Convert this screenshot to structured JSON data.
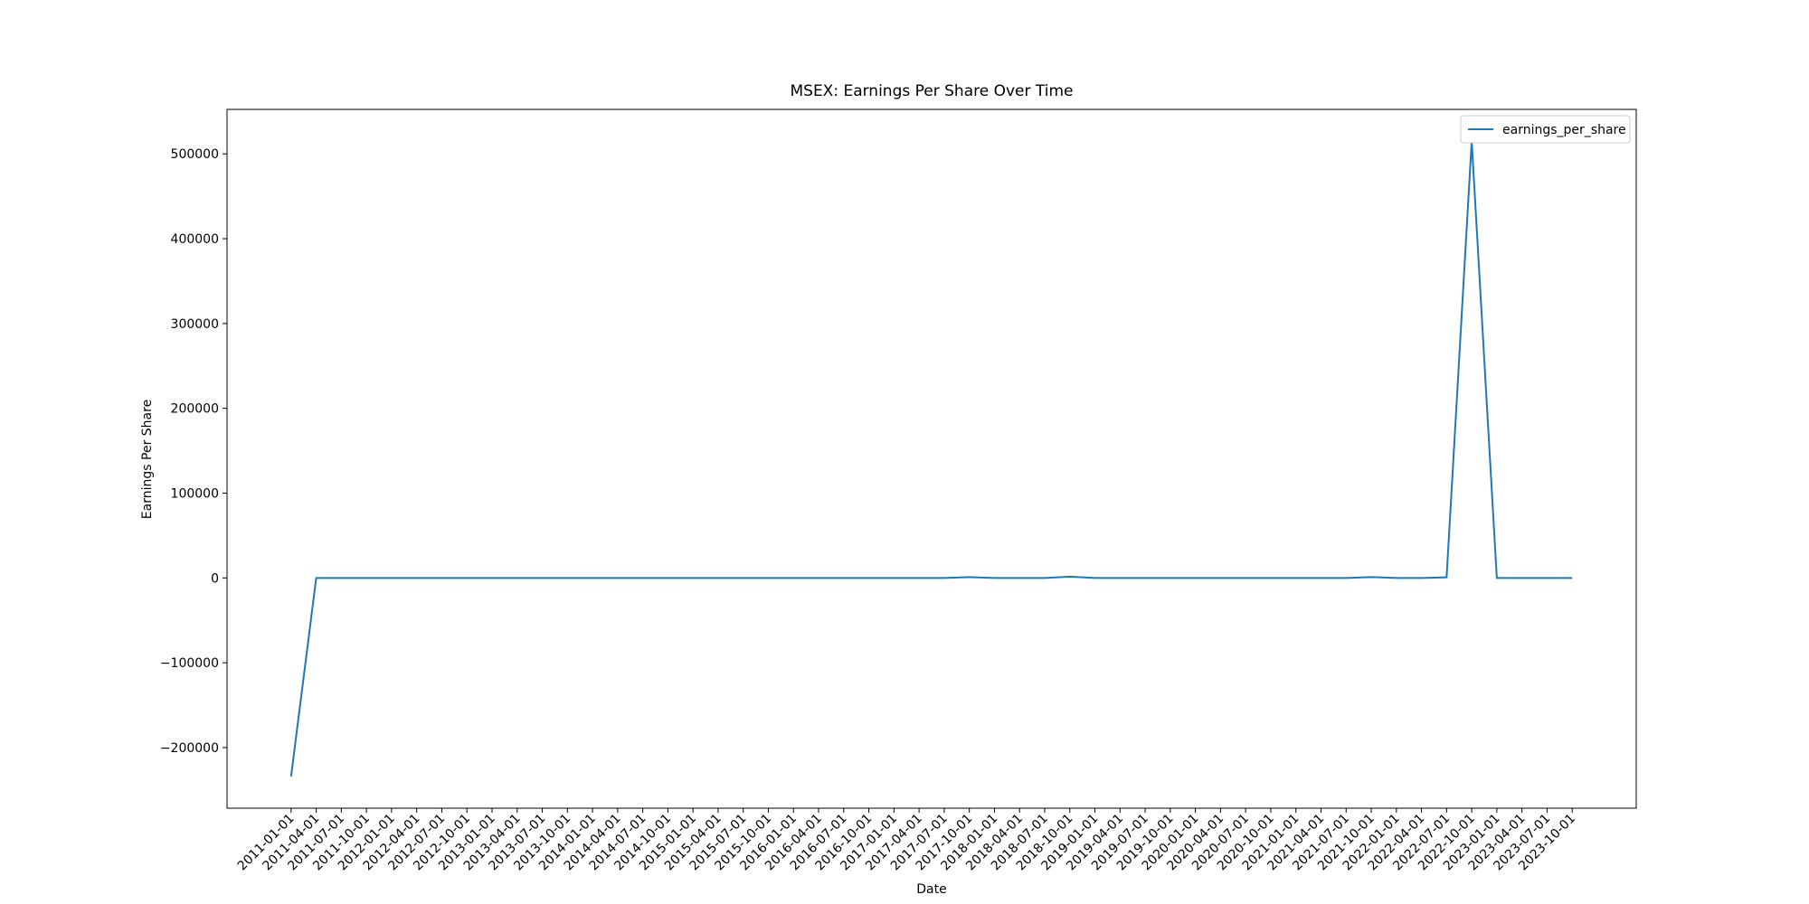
{
  "chart_data": {
    "type": "line",
    "title": "MSEX: Earnings Per Share Over Time",
    "xlabel": "Date",
    "ylabel": "Earnings Per Share",
    "categories": [
      "2011-01-01",
      "2011-04-01",
      "2011-07-01",
      "2011-10-01",
      "2012-01-01",
      "2012-04-01",
      "2012-07-01",
      "2012-10-01",
      "2013-01-01",
      "2013-04-01",
      "2013-07-01",
      "2013-10-01",
      "2014-01-01",
      "2014-04-01",
      "2014-07-01",
      "2014-10-01",
      "2015-01-01",
      "2015-04-01",
      "2015-07-01",
      "2015-10-01",
      "2016-01-01",
      "2016-04-01",
      "2016-07-01",
      "2016-10-01",
      "2017-01-01",
      "2017-04-01",
      "2017-07-01",
      "2017-10-01",
      "2018-01-01",
      "2018-04-01",
      "2018-07-01",
      "2018-10-01",
      "2019-01-01",
      "2019-04-01",
      "2019-07-01",
      "2019-10-01",
      "2020-01-01",
      "2020-04-01",
      "2020-07-01",
      "2020-10-01",
      "2021-01-01",
      "2021-04-01",
      "2021-07-01",
      "2021-10-01",
      "2022-01-01",
      "2022-04-01",
      "2022-07-01",
      "2022-10-01",
      "2023-01-01",
      "2023-04-01",
      "2023-07-01",
      "2023-10-01"
    ],
    "series": [
      {
        "name": "earnings_per_share",
        "color": "#1f77b4",
        "values": [
          -234000,
          0.4,
          0.3,
          0.5,
          0.4,
          0.4,
          0.5,
          0.4,
          0.4,
          0.5,
          0.4,
          0.4,
          0.5,
          0.4,
          0.4,
          0.5,
          0.4,
          0.4,
          0.5,
          0.4,
          0.5,
          0.5,
          0.4,
          0.5,
          0.5,
          0.4,
          0.5,
          1000,
          0.5,
          0.5,
          0.6,
          1500,
          0.5,
          0.5,
          0.6,
          0.5,
          0.5,
          0.5,
          0.6,
          0.5,
          0.5,
          0.5,
          0.6,
          1000,
          0.5,
          0.6,
          700,
          515000,
          0.6,
          0.6,
          0.6,
          0.6
        ]
      }
    ],
    "ylim": [
      -271450,
      552450
    ],
    "yticks": [
      {
        "value": -200000,
        "label": "−200000"
      },
      {
        "value": -100000,
        "label": "−100000"
      },
      0,
      100000,
      200000,
      300000,
      400000,
      500000
    ],
    "legend": "upper right"
  }
}
